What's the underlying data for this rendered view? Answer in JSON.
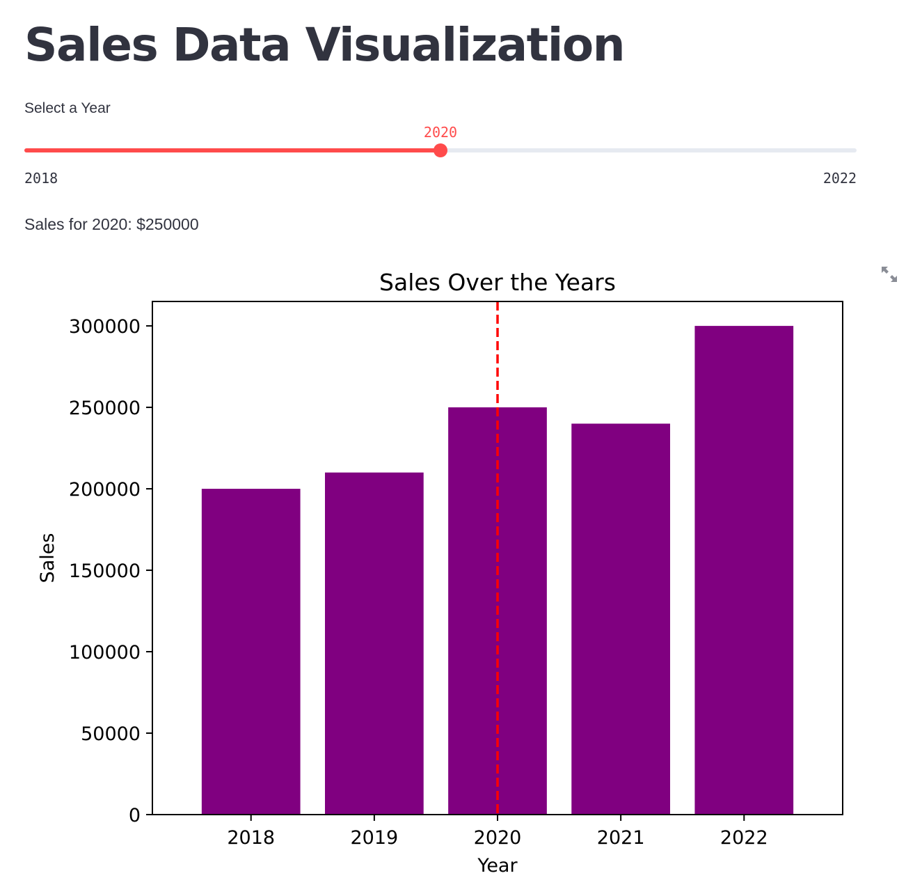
{
  "page": {
    "title": "Sales Data Visualization"
  },
  "slider": {
    "label": "Select a Year",
    "value": 2020,
    "value_label": "2020",
    "min": 2018,
    "max": 2022,
    "min_label": "2018",
    "max_label": "2022",
    "accent_color": "#ff4b4b",
    "track_color": "#e6eaf1"
  },
  "sales_text": "Sales for 2020: $250000",
  "icons": {
    "fullscreen": "expand-icon"
  },
  "chart_data": {
    "type": "bar",
    "title": "Sales Over the Years",
    "xlabel": "Year",
    "ylabel": "Sales",
    "categories": [
      "2018",
      "2019",
      "2020",
      "2021",
      "2022"
    ],
    "values": [
      200000,
      210000,
      250000,
      240000,
      300000
    ],
    "ylim": [
      0,
      315000
    ],
    "yticks": [
      0,
      50000,
      100000,
      150000,
      200000,
      250000,
      300000
    ],
    "bar_color": "#800080",
    "highlight": {
      "category": "2020",
      "style": "dashed vertical line",
      "color": "#ff0000"
    },
    "grid": false,
    "legend": "none"
  }
}
